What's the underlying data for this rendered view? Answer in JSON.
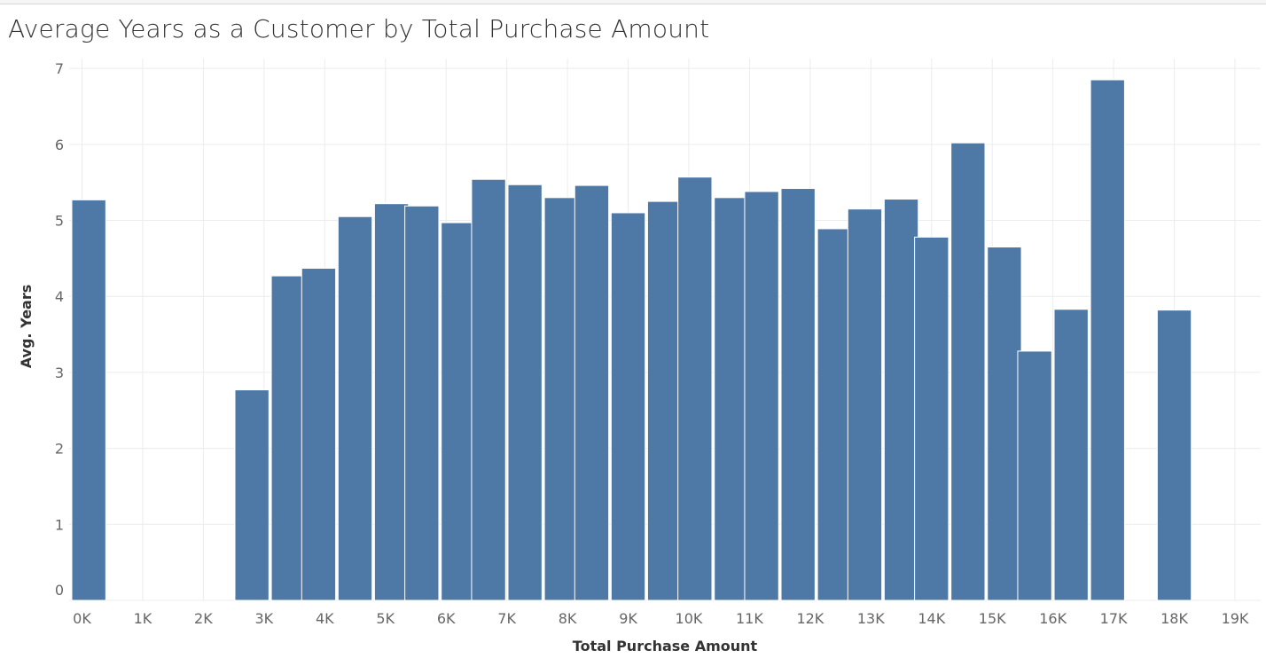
{
  "chart_data": {
    "type": "bar",
    "title": "Average Years as a Customer by Total Purchase Amount",
    "xlabel": "Total Purchase Amount",
    "ylabel": "Avg. Years",
    "xlim": [
      0,
      19
    ],
    "ylim": [
      0,
      7
    ],
    "x_ticks": [
      "0K",
      "1K",
      "2K",
      "3K",
      "4K",
      "5K",
      "6K",
      "7K",
      "8K",
      "9K",
      "10K",
      "11K",
      "12K",
      "13K",
      "14K",
      "15K",
      "16K",
      "17K",
      "18K",
      "19K"
    ],
    "y_ticks": [
      "0",
      "1",
      "2",
      "3",
      "4",
      "5",
      "6",
      "7"
    ],
    "bins": [
      "0K",
      "2.8K",
      "3.4K",
      "3.9K",
      "4.5K",
      "5.1K",
      "5.6K",
      "6.2K",
      "6.7K",
      "7.3K",
      "7.9K",
      "8.4K",
      "9.0K",
      "9.6K",
      "10.1K",
      "10.7K",
      "11.2K",
      "11.8K",
      "12.4K",
      "12.9K",
      "13.5K",
      "14.0K",
      "14.6K",
      "15.2K",
      "15.7K",
      "16.3K",
      "16.9K",
      "18.0K"
    ],
    "values": [
      5.27,
      2.77,
      4.27,
      4.37,
      5.05,
      5.22,
      5.19,
      4.97,
      5.54,
      5.47,
      5.3,
      5.46,
      5.1,
      5.25,
      5.57,
      5.3,
      5.38,
      5.42,
      4.89,
      5.15,
      5.28,
      4.78,
      6.02,
      4.65,
      3.28,
      3.83,
      6.85,
      3.82
    ],
    "bin_width_k": 0.56,
    "bar_color": "#4e79a7",
    "grid": true
  }
}
